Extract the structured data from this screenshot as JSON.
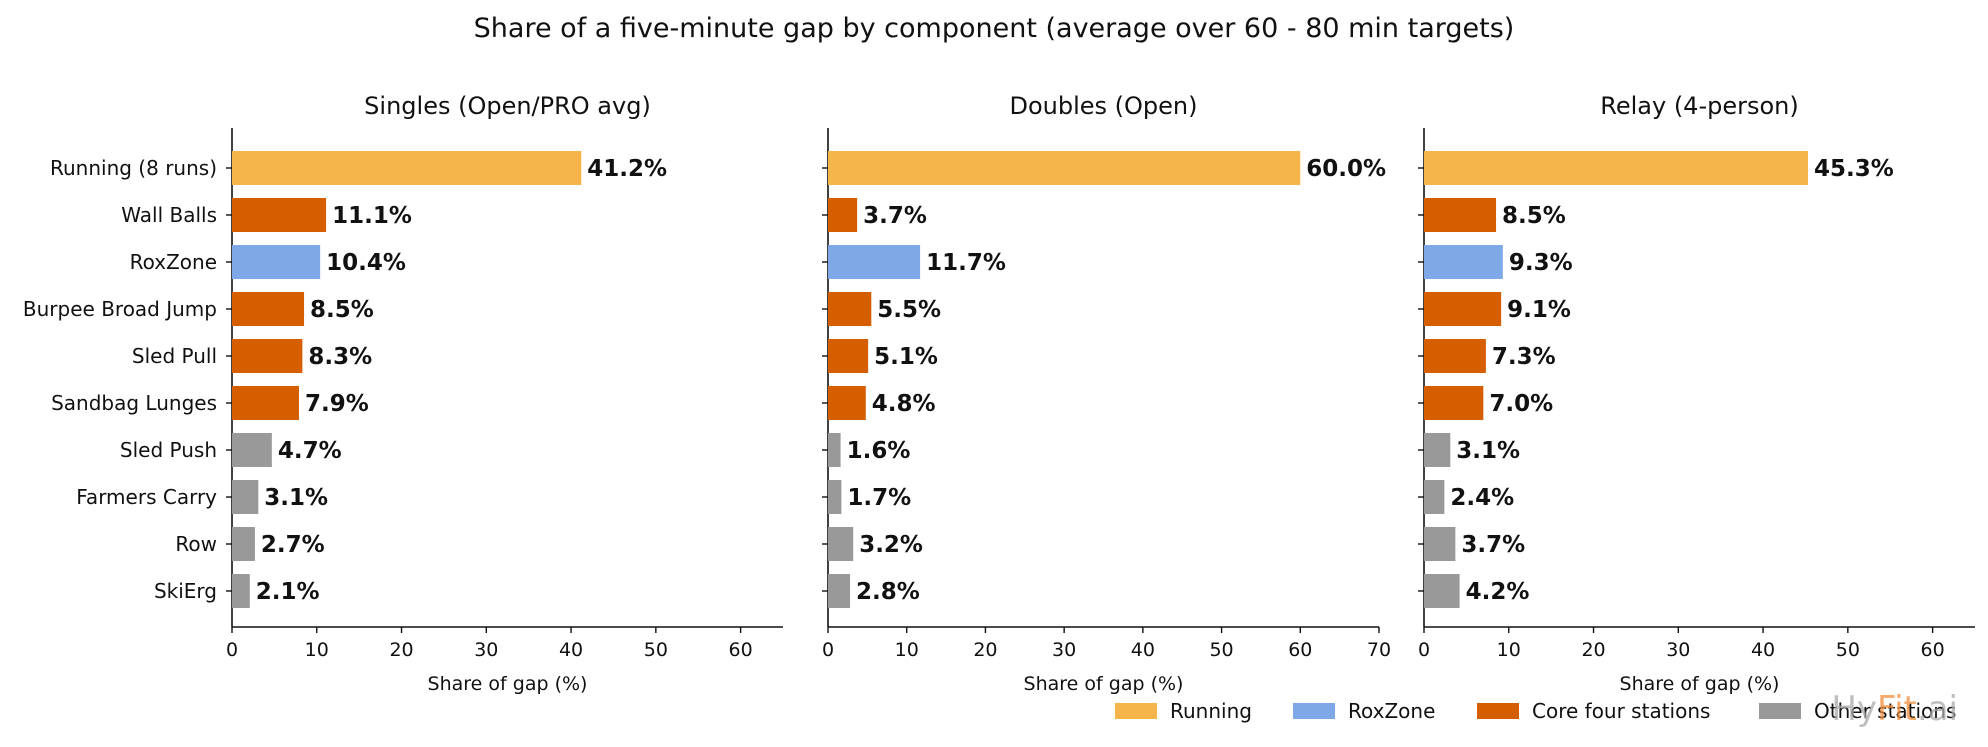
{
  "chart_data": {
    "type": "bar",
    "orientation": "horizontal",
    "title": "Share of a five-minute gap by component (average over 60 - 80 min targets)",
    "categories": [
      "Running (8 runs)",
      "Wall Balls",
      "RoxZone",
      "Burpee Broad Jump",
      "Sled Pull",
      "Sandbag Lunges",
      "Sled Push",
      "Farmers Carry",
      "Row",
      "SkiErg"
    ],
    "category_groups": [
      "Running",
      "Core four stations",
      "RoxZone",
      "Core four stations",
      "Core four stations",
      "Core four stations",
      "Other stations",
      "Other stations",
      "Other stations",
      "Other stations"
    ],
    "legend": {
      "placement": "bottom-right",
      "entries": [
        {
          "label": "Running",
          "color": "#F5B54A"
        },
        {
          "label": "RoxZone",
          "color": "#7FA8E6"
        },
        {
          "label": "Core four stations",
          "color": "#D55E00"
        },
        {
          "label": "Other stations",
          "color": "#999999"
        }
      ]
    },
    "panels": [
      {
        "title": "Singles (Open/PRO avg)",
        "xlabel": "Share of gap (%)",
        "xlim": [
          0,
          65
        ],
        "xticks": [
          0,
          10,
          20,
          30,
          40,
          50,
          60
        ],
        "values": [
          41.2,
          11.1,
          10.4,
          8.5,
          8.3,
          7.9,
          4.7,
          3.1,
          2.7,
          2.1
        ],
        "labels": [
          "41.2%",
          "11.1%",
          "10.4%",
          "8.5%",
          "8.3%",
          "7.9%",
          "4.7%",
          "3.1%",
          "2.7%",
          "2.1%"
        ]
      },
      {
        "title": "Doubles (Open)",
        "xlabel": "Share of gap (%)",
        "xlim": [
          0,
          70
        ],
        "xticks": [
          0,
          10,
          20,
          30,
          40,
          50,
          60,
          70
        ],
        "values": [
          60.0,
          3.7,
          11.7,
          5.5,
          5.1,
          4.8,
          1.6,
          1.7,
          3.2,
          2.8
        ],
        "labels": [
          "60.0%",
          "3.7%",
          "11.7%",
          "5.5%",
          "5.1%",
          "4.8%",
          "1.6%",
          "1.7%",
          "3.2%",
          "2.8%"
        ]
      },
      {
        "title": "Relay (4-person)",
        "xlabel": "Share of gap (%)",
        "xlim": [
          0,
          65
        ],
        "xticks": [
          0,
          10,
          20,
          30,
          40,
          50,
          60
        ],
        "values": [
          45.3,
          8.5,
          9.3,
          9.1,
          7.3,
          7.0,
          3.1,
          2.4,
          3.7,
          4.2
        ],
        "labels": [
          "45.3%",
          "8.5%",
          "9.3%",
          "9.1%",
          "7.3%",
          "7.0%",
          "3.1%",
          "2.4%",
          "3.7%",
          "4.2%"
        ]
      }
    ],
    "grid": false
  },
  "watermark": {
    "parts": [
      "Hy",
      "Fit",
      ".ai"
    ],
    "colors": [
      "#aaaaaa",
      "#F28C3A",
      "#aaaaaa"
    ]
  }
}
